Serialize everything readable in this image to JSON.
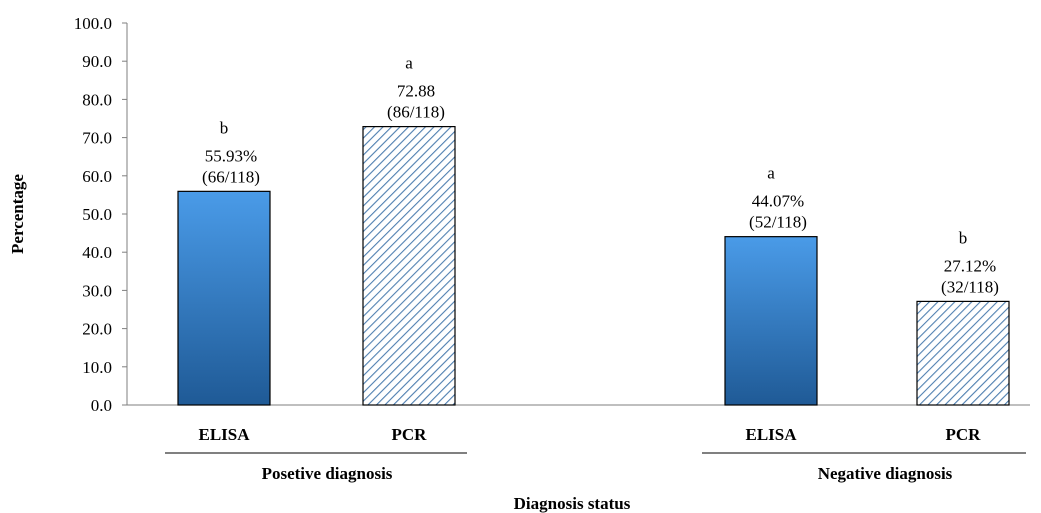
{
  "chart_data": {
    "type": "bar",
    "xlabel": "Diagnosis status",
    "ylabel": "Percentage",
    "ylim": [
      0,
      100
    ],
    "yticks": [
      "0.0",
      "10.0",
      "20.0",
      "30.0",
      "40.0",
      "50.0",
      "60.0",
      "70.0",
      "80.0",
      "90.0",
      "100.0"
    ],
    "grid": false,
    "groups": [
      {
        "name": "Posetive diagnosis",
        "bars": [
          {
            "category": "ELISA",
            "value": 55.93,
            "letter": "b",
            "pct_label": "55.93%",
            "count_label": "(66/118)",
            "style": "solid"
          },
          {
            "category": "PCR",
            "value": 72.88,
            "letter": "a",
            "pct_label": "72.88",
            "count_label": "(86/118)",
            "style": "hatched"
          }
        ]
      },
      {
        "name": "Negative diagnosis",
        "bars": [
          {
            "category": "ELISA",
            "value": 44.07,
            "letter": "a",
            "pct_label": "44.07%",
            "count_label": "(52/118)",
            "style": "solid"
          },
          {
            "category": "PCR",
            "value": 27.12,
            "letter": "b",
            "pct_label": "27.12%",
            "count_label": "(32/118)",
            "style": "hatched"
          }
        ]
      }
    ],
    "colors": {
      "solid_top": "#4a9be8",
      "solid_bottom": "#1f5a96",
      "hatch_line": "#4f7fb0",
      "hatch_bg": "#ffffff",
      "outline": "#000000"
    }
  }
}
